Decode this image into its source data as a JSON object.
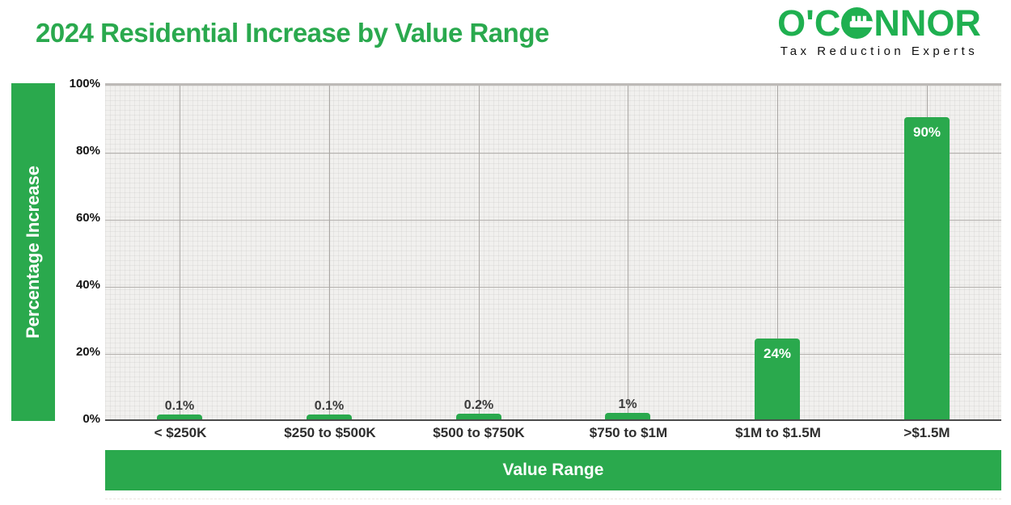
{
  "header": {
    "title": "2024 Residential Increase by Value Range"
  },
  "logo": {
    "part1": "O'C",
    "part2": "NNOR",
    "tagline": "Tax Reduction Experts",
    "key_o_icon": "key-inside-circle-icon",
    "brand_green": "#1fb050",
    "tagline_color": "#111111"
  },
  "colors": {
    "accent_green": "#2aa94d",
    "title_green": "#2aa94e",
    "plot_background": "#f1f0ee",
    "major_gridline": "#b3b0ad",
    "axis_line": "#4b4b4b",
    "dark_label": "#3a3a3a",
    "inside_bar_label": "#ffffff"
  },
  "chart_data": {
    "type": "bar",
    "title": "2024 Residential Increase by Value Range",
    "xlabel": "Value Range",
    "ylabel": "Percentage Increase",
    "categories": [
      "< $250K",
      "$250 to $500K",
      "$500 to $750K",
      "$750 to $1M",
      "$1M to $1.5M",
      ">$1.5M"
    ],
    "values": [
      0.1,
      0.1,
      0.2,
      1,
      24,
      90
    ],
    "value_labels": [
      "0.1%",
      "0.1%",
      "0.2%",
      "1%",
      "24%",
      "90%"
    ],
    "ylim": [
      0,
      100
    ],
    "yticks": [
      {
        "label": "0%",
        "value": 0
      },
      {
        "label": "20%",
        "value": 20
      },
      {
        "label": "40%",
        "value": 40
      },
      {
        "label": "60%",
        "value": 60
      },
      {
        "label": "80%",
        "value": 80
      },
      {
        "label": "100%",
        "value": 100
      }
    ],
    "grid": true,
    "legend": "none",
    "bar_color": "#2aa94d"
  }
}
